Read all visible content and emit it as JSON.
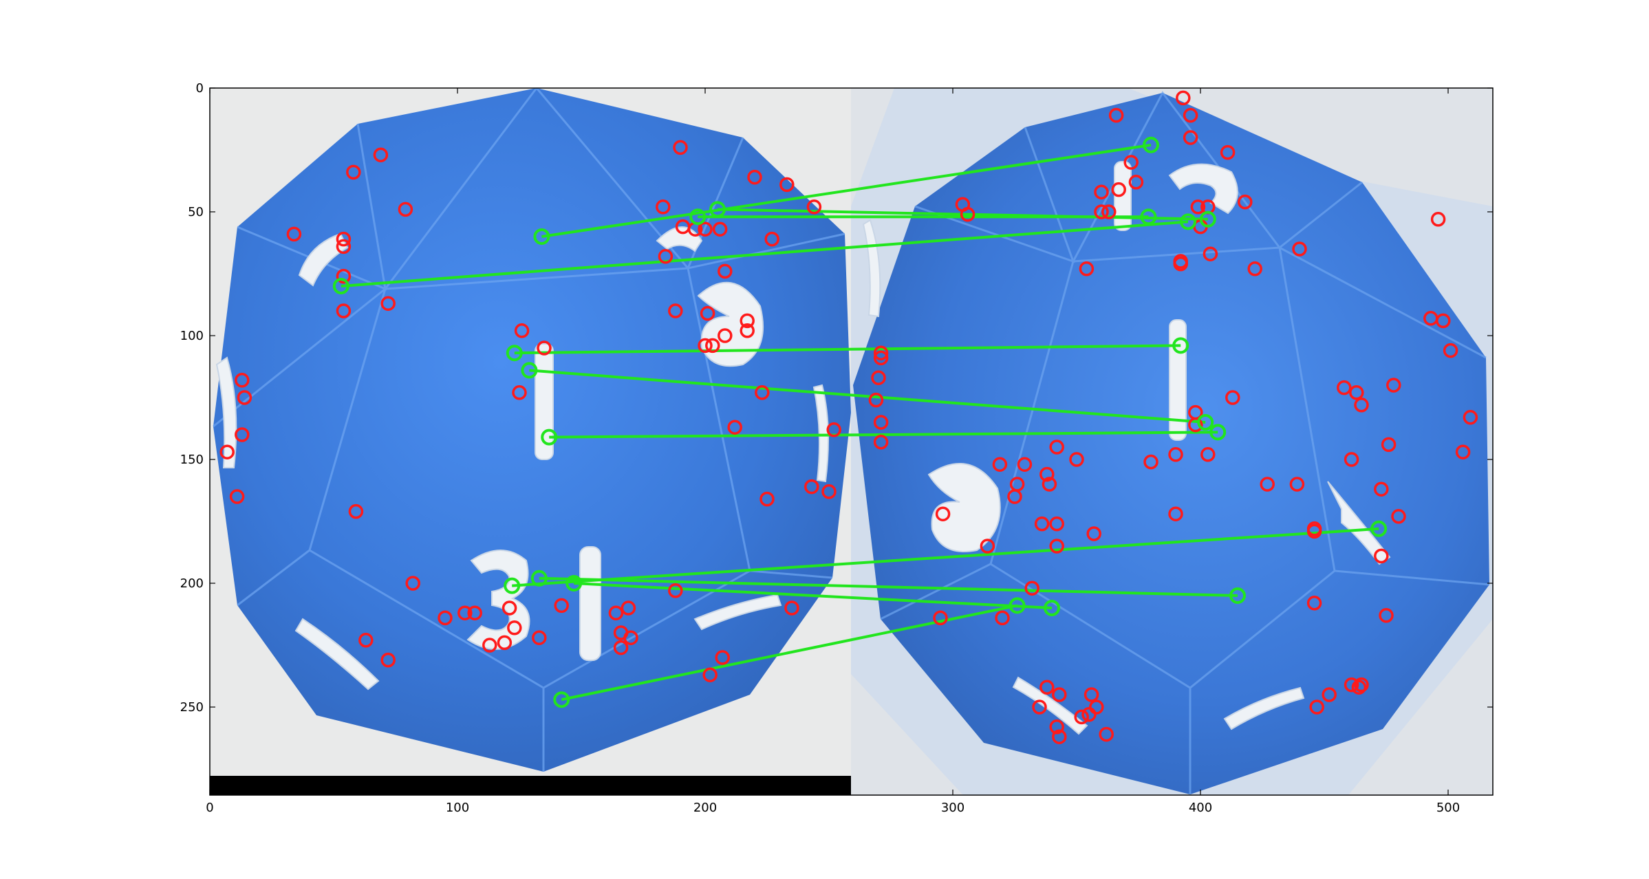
{
  "figure": {
    "description_type": "keypoint-matching-plot",
    "x_axis": {
      "ticks": [
        0,
        100,
        200,
        300,
        400,
        500
      ],
      "range": [
        0,
        518
      ]
    },
    "y_axis": {
      "ticks": [
        0,
        50,
        100,
        150,
        200,
        250
      ],
      "range": [
        0,
        286
      ]
    },
    "image_split_x": 259,
    "colors": {
      "background": "#ffffff",
      "die_blue": "#3f7fdc",
      "die_dark_blue": "#2c62c0",
      "backdrop_gray": "#e4e6e8",
      "keypoint": "#ff1a1a",
      "match": "#22e51e",
      "black_bar": "#000000"
    },
    "left_image_numerals": [
      "1",
      "13",
      "9",
      "7"
    ],
    "right_image_numerals": [
      "1",
      "13",
      "9",
      "7"
    ]
  },
  "chart_data": {
    "type": "scatter",
    "title": "",
    "xlabel": "",
    "ylabel": "",
    "xlim": [
      0,
      518
    ],
    "ylim": [
      286,
      0
    ],
    "series": [
      {
        "name": "unmatched keypoints",
        "color": "#ff1a1a",
        "points": [
          [
            58,
            34
          ],
          [
            69,
            27
          ],
          [
            79,
            49
          ],
          [
            34,
            59
          ],
          [
            54,
            61
          ],
          [
            54,
            64
          ],
          [
            54,
            76
          ],
          [
            54,
            90
          ],
          [
            72,
            87
          ],
          [
            13,
            118
          ],
          [
            14,
            125
          ],
          [
            13,
            140
          ],
          [
            7,
            147
          ],
          [
            11,
            165
          ],
          [
            59,
            171
          ],
          [
            190,
            24
          ],
          [
            183,
            48
          ],
          [
            191,
            56
          ],
          [
            196,
            57
          ],
          [
            200,
            57
          ],
          [
            206,
            57
          ],
          [
            184,
            68
          ],
          [
            227,
            61
          ],
          [
            208,
            74
          ],
          [
            220,
            36
          ],
          [
            233,
            39
          ],
          [
            244,
            48
          ],
          [
            201,
            91
          ],
          [
            217,
            94
          ],
          [
            217,
            98
          ],
          [
            200,
            104
          ],
          [
            203,
            104
          ],
          [
            208,
            100
          ],
          [
            188,
            90
          ],
          [
            223,
            123
          ],
          [
            212,
            137
          ],
          [
            243,
            161
          ],
          [
            250,
            163
          ],
          [
            225,
            166
          ],
          [
            252,
            138
          ],
          [
            125,
            123
          ],
          [
            126,
            98
          ],
          [
            135,
            105
          ],
          [
            82,
            200
          ],
          [
            95,
            214
          ],
          [
            103,
            212
          ],
          [
            107,
            212
          ],
          [
            121,
            210
          ],
          [
            123,
            218
          ],
          [
            119,
            224
          ],
          [
            113,
            225
          ],
          [
            133,
            222
          ],
          [
            142,
            209
          ],
          [
            164,
            212
          ],
          [
            169,
            210
          ],
          [
            166,
            220
          ],
          [
            166,
            226
          ],
          [
            170,
            222
          ],
          [
            188,
            203
          ],
          [
            235,
            210
          ],
          [
            202,
            237
          ],
          [
            207,
            230
          ],
          [
            63,
            223
          ],
          [
            72,
            231
          ],
          [
            366,
            11
          ],
          [
            393,
            4
          ],
          [
            396,
            11
          ],
          [
            396,
            20
          ],
          [
            411,
            26
          ],
          [
            372,
            30
          ],
          [
            360,
            42
          ],
          [
            360,
            50
          ],
          [
            363,
            50
          ],
          [
            367,
            41
          ],
          [
            374,
            38
          ],
          [
            399,
            48
          ],
          [
            403,
            48
          ],
          [
            400,
            56
          ],
          [
            392,
            70
          ],
          [
            392,
            71
          ],
          [
            404,
            67
          ],
          [
            418,
            46
          ],
          [
            440,
            65
          ],
          [
            422,
            73
          ],
          [
            354,
            73
          ],
          [
            304,
            47
          ],
          [
            306,
            51
          ],
          [
            271,
            107
          ],
          [
            271,
            109
          ],
          [
            270,
            117
          ],
          [
            269,
            126
          ],
          [
            271,
            135
          ],
          [
            271,
            143
          ],
          [
            329,
            152
          ],
          [
            319,
            152
          ],
          [
            326,
            160
          ],
          [
            325,
            165
          ],
          [
            338,
            156
          ],
          [
            339,
            160
          ],
          [
            342,
            145
          ],
          [
            350,
            150
          ],
          [
            357,
            180
          ],
          [
            342,
            185
          ],
          [
            336,
            176
          ],
          [
            342,
            176
          ],
          [
            332,
            202
          ],
          [
            296,
            172
          ],
          [
            314,
            185
          ],
          [
            320,
            214
          ],
          [
            295,
            214
          ],
          [
            380,
            151
          ],
          [
            398,
            131
          ],
          [
            398,
            136
          ],
          [
            403,
            148
          ],
          [
            413,
            125
          ],
          [
            390,
            148
          ],
          [
            390,
            172
          ],
          [
            458,
            121
          ],
          [
            463,
            123
          ],
          [
            465,
            128
          ],
          [
            461,
            150
          ],
          [
            473,
            162
          ],
          [
            473,
            189
          ],
          [
            480,
            173
          ],
          [
            446,
            178
          ],
          [
            446,
            179
          ],
          [
            427,
            160
          ],
          [
            439,
            160
          ],
          [
            446,
            208
          ],
          [
            475,
            213
          ],
          [
            476,
            144
          ],
          [
            478,
            120
          ],
          [
            493,
            93
          ],
          [
            498,
            94
          ],
          [
            501,
            106
          ],
          [
            506,
            147
          ],
          [
            509,
            133
          ],
          [
            496,
            53
          ],
          [
            338,
            242
          ],
          [
            343,
            245
          ],
          [
            335,
            250
          ],
          [
            342,
            258
          ],
          [
            352,
            254
          ],
          [
            358,
            250
          ],
          [
            355,
            253
          ],
          [
            356,
            245
          ],
          [
            343,
            262
          ],
          [
            362,
            261
          ],
          [
            447,
            250
          ],
          [
            452,
            245
          ],
          [
            461,
            241
          ],
          [
            465,
            241
          ],
          [
            464,
            242
          ]
        ]
      },
      {
        "name": "matches",
        "color": "#22e51e",
        "pairs": [
          [
            [
              134,
              60
            ],
            [
              380,
              23
            ]
          ],
          [
            [
              197,
              52
            ],
            [
              379,
              52
            ]
          ],
          [
            [
              205,
              49
            ],
            [
              403,
              53
            ]
          ],
          [
            [
              53,
              80
            ],
            [
              395,
              54
            ]
          ],
          [
            [
              123,
              107
            ],
            [
              392,
              104
            ]
          ],
          [
            [
              129,
              114
            ],
            [
              402,
              135
            ]
          ],
          [
            [
              137,
              141
            ],
            [
              407,
              139
            ]
          ],
          [
            [
              122,
              201
            ],
            [
              472,
              178
            ]
          ],
          [
            [
              133,
              198
            ],
            [
              415,
              205
            ]
          ],
          [
            [
              147,
              200
            ],
            [
              340,
              210
            ]
          ],
          [
            [
              142,
              247
            ],
            [
              326,
              209
            ]
          ]
        ]
      }
    ]
  }
}
